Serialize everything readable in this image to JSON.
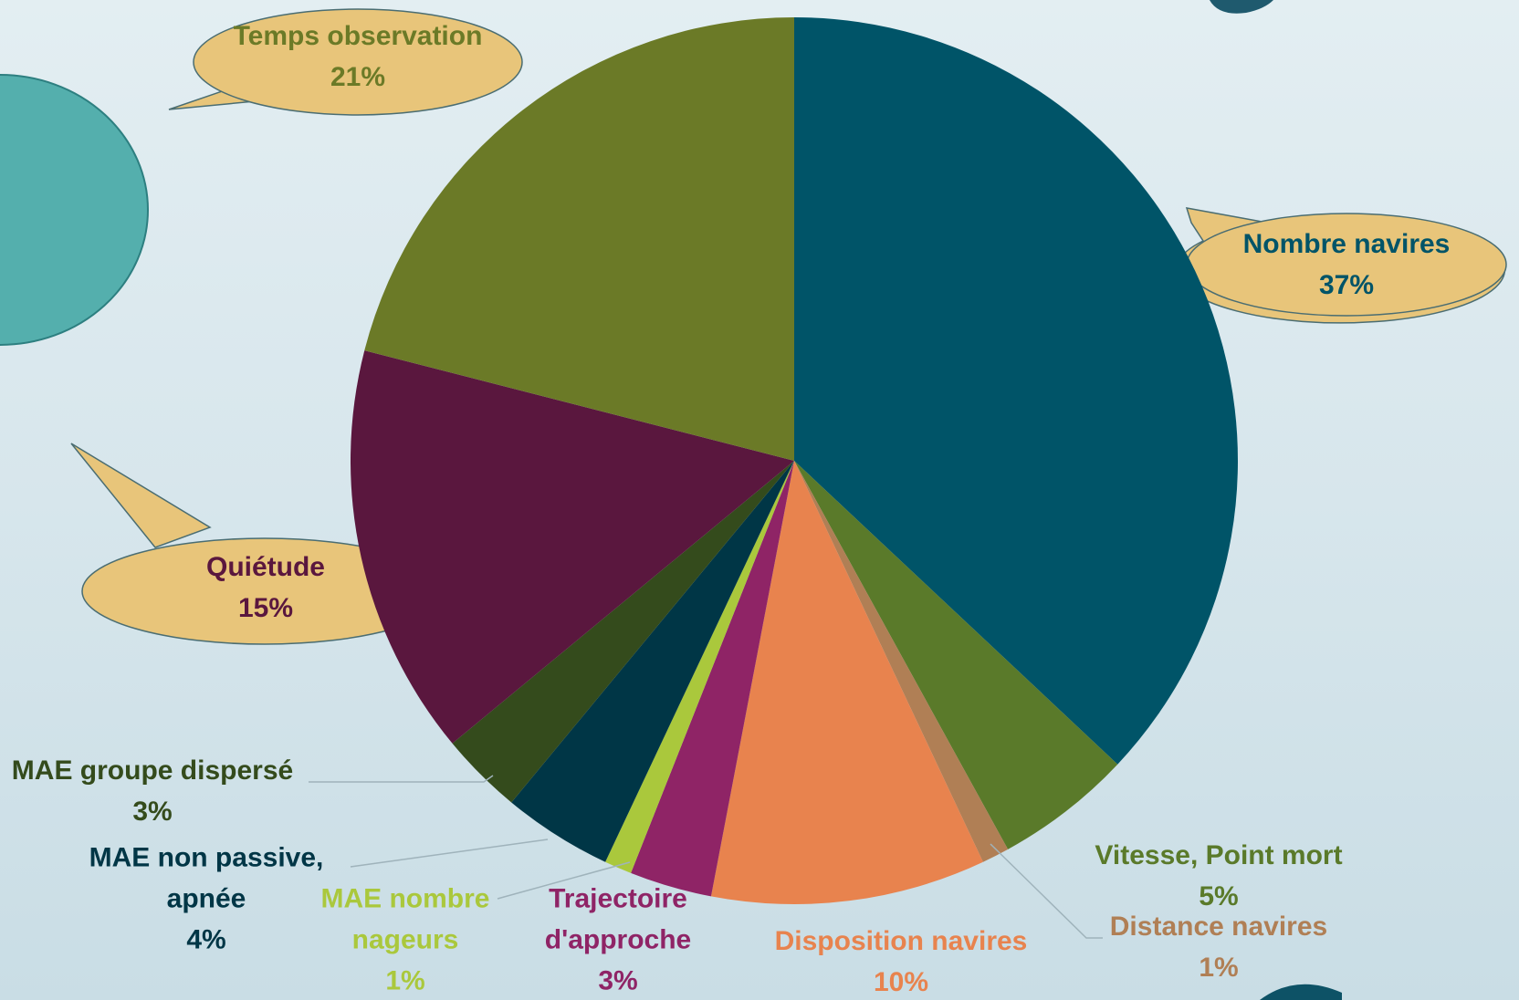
{
  "chart_data": {
    "type": "pie",
    "categories": [
      "Nombre navires",
      "Vitesse, Point mort",
      "Distance navires",
      "Disposition navires",
      "Trajectoire d'approche",
      "MAE nombre nageurs",
      "MAE non passive, apnée",
      "MAE groupe dispersé",
      "Quiétude",
      "Temps observation"
    ],
    "values": [
      37,
      5,
      1,
      10,
      3,
      1,
      4,
      3,
      15,
      21
    ],
    "value_labels": [
      "37%",
      "5%",
      "1%",
      "10%",
      "3%",
      "1%",
      "4%",
      "3%",
      "15%",
      "21%"
    ],
    "colors": [
      "#005468",
      "#5a7a2a",
      "#b07f55",
      "#e8834e",
      "#8f2466",
      "#aac83c",
      "#003646",
      "#344b1c",
      "#5a173e",
      "#6b7a27"
    ]
  }
}
